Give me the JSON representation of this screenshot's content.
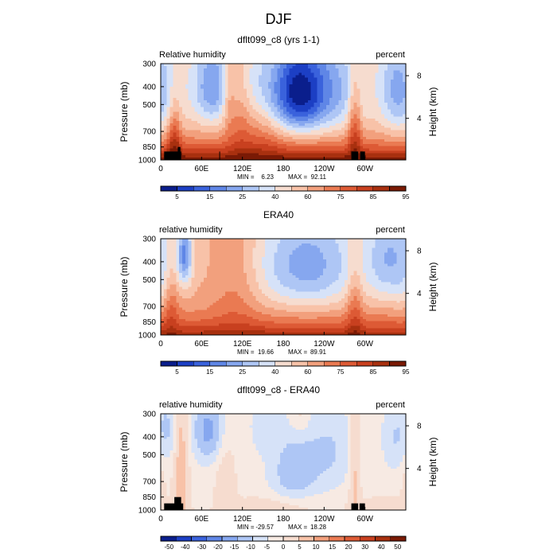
{
  "page_title": "DJF",
  "colors": {
    "rh_palette": [
      "#0a1e8c",
      "#1c3fc4",
      "#3a62dc",
      "#5f86e6",
      "#86a7ef",
      "#aec6f5",
      "#d6e2f8",
      "#f6dccf",
      "#f8c2a8",
      "#f2a07d",
      "#ea7a52",
      "#dd5a35",
      "#c8401f",
      "#a8300f",
      "#7a1a05"
    ],
    "diff_palette": [
      "#0a1e8c",
      "#1c3fc4",
      "#3a62dc",
      "#5f86e6",
      "#86a7ef",
      "#aec6f5",
      "#d6e2f8",
      "#f7eae3",
      "#f6dccf",
      "#f8c2a8",
      "#f2a07d",
      "#ea7a52",
      "#dd5a35",
      "#c8401f",
      "#a8300f",
      "#7a1a05"
    ],
    "topography": "#000000"
  },
  "chart_data": [
    {
      "type": "heatmap",
      "title": "dflt099_c8 (yrs 1-1)",
      "left_label": "Relative humidity",
      "right_label": "percent",
      "ylabel": "Pressure (mb)",
      "y2label": "Height (km)",
      "yticks": [
        300,
        400,
        500,
        700,
        850,
        1000
      ],
      "y2ticks": [
        8,
        4
      ],
      "xticks": [
        "0",
        "60E",
        "120E",
        "180",
        "120W",
        "60W"
      ],
      "stats": {
        "min_label": "MIN =",
        "min": "6.23",
        "max_label": "MAX =",
        "max": "92.11"
      },
      "colorbar_levels": [
        "5",
        "15",
        "25",
        "40",
        "60",
        "75",
        "85",
        "95"
      ],
      "zlim": [
        0,
        100
      ],
      "field": {
        "base": 55,
        "low_weight": 45,
        "features": [
          {
            "lon": 200,
            "p": 430,
            "amp": -48,
            "sx": 28,
            "sp": 180
          },
          {
            "lon": 255,
            "p": 420,
            "amp": -20,
            "sx": 35,
            "sp": 200
          },
          {
            "lon": 75,
            "p": 400,
            "amp": -28,
            "sx": 20,
            "sp": 160
          },
          {
            "lon": 345,
            "p": 420,
            "amp": -22,
            "sx": 16,
            "sp": 200
          },
          {
            "lon": 15,
            "p": 450,
            "amp": -12,
            "sx": 15,
            "sp": 200
          },
          {
            "lon": 140,
            "p": 380,
            "amp": -10,
            "sx": 20,
            "sp": 150
          },
          {
            "lon": 20,
            "p": 750,
            "amp": 22,
            "sx": 7,
            "sp": 250
          },
          {
            "lon": 285,
            "p": 650,
            "amp": 22,
            "sx": 7,
            "sp": 250
          },
          {
            "lon": 100,
            "p": 400,
            "amp": 12,
            "sx": 6,
            "sp": 180
          },
          {
            "lon": 115,
            "p": 550,
            "amp": 10,
            "sx": 12,
            "sp": 250
          },
          {
            "lon": 145,
            "p": 750,
            "amp": 8,
            "sx": 25,
            "sp": 200
          }
        ]
      },
      "topography": [
        {
          "lon0": 5,
          "lon1": 30,
          "ptop": 900
        },
        {
          "lon0": 25,
          "lon1": 29,
          "ptop": 850
        },
        {
          "lon0": 86,
          "lon1": 87,
          "ptop": 900
        },
        {
          "lon0": 280,
          "lon1": 290,
          "ptop": 900
        },
        {
          "lon0": 293,
          "lon1": 300,
          "ptop": 900
        }
      ]
    },
    {
      "type": "heatmap",
      "title": "ERA40",
      "left_label": "relative humidity",
      "right_label": "percent",
      "ylabel": "Pressure (mb)",
      "y2label": "Height (km)",
      "yticks": [
        300,
        400,
        500,
        700,
        850,
        1000
      ],
      "y2ticks": [
        8,
        4
      ],
      "xticks": [
        "0",
        "60E",
        "120E",
        "180",
        "120W",
        "60W"
      ],
      "stats": {
        "min_label": "MIN =",
        "min": "19.66",
        "max_label": "MAX =",
        "max": "89.91"
      },
      "colorbar_levels": [
        "5",
        "15",
        "25",
        "40",
        "60",
        "75",
        "85",
        "95"
      ],
      "zlim": [
        0,
        100
      ],
      "field": {
        "base": 58,
        "low_weight": 34,
        "features": [
          {
            "lon": 215,
            "p": 420,
            "amp": -28,
            "sx": 55,
            "sp": 200
          },
          {
            "lon": 35,
            "p": 370,
            "amp": -33,
            "sx": 8,
            "sp": 110
          },
          {
            "lon": 335,
            "p": 380,
            "amp": -22,
            "sx": 22,
            "sp": 180
          },
          {
            "lon": 0,
            "p": 450,
            "amp": -8,
            "sx": 12,
            "sp": 220
          },
          {
            "lon": 110,
            "p": 500,
            "amp": 10,
            "sx": 25,
            "sp": 300
          },
          {
            "lon": 285,
            "p": 680,
            "amp": 14,
            "sx": 8,
            "sp": 250
          },
          {
            "lon": 15,
            "p": 720,
            "amp": 12,
            "sx": 8,
            "sp": 200
          }
        ]
      },
      "topography": []
    },
    {
      "type": "heatmap",
      "title": "dflt099_c8 - ERA40",
      "left_label": "relative humidity",
      "right_label": "percent",
      "ylabel": "Pressure (mb)",
      "y2label": "Height (km)",
      "yticks": [
        300,
        400,
        500,
        700,
        850,
        1000
      ],
      "y2ticks": [
        8,
        4
      ],
      "xticks": [
        "0",
        "60E",
        "120E",
        "180",
        "120W",
        "60W"
      ],
      "stats": {
        "min_label": "MIN =",
        "min": "-29.57",
        "max_label": "MAX =",
        "max": "18.28"
      },
      "colorbar_levels": [
        "-50",
        "-40",
        "-30",
        "-20",
        "-15",
        "-10",
        "-5",
        "0",
        "5",
        "10",
        "15",
        "20",
        "30",
        "40",
        "50"
      ],
      "zlim": [
        -60,
        60
      ],
      "field": {
        "base": -3,
        "low_weight": 2,
        "features": [
          {
            "lon": 70,
            "p": 370,
            "amp": -22,
            "sx": 18,
            "sp": 120
          },
          {
            "lon": 195,
            "p": 620,
            "amp": -18,
            "sx": 25,
            "sp": 200
          },
          {
            "lon": 250,
            "p": 480,
            "amp": -12,
            "sx": 25,
            "sp": 200
          },
          {
            "lon": 345,
            "p": 400,
            "amp": -12,
            "sx": 14,
            "sp": 150
          },
          {
            "lon": 10,
            "p": 360,
            "amp": -12,
            "sx": 10,
            "sp": 120
          },
          {
            "lon": 150,
            "p": 350,
            "amp": -8,
            "sx": 15,
            "sp": 100
          },
          {
            "lon": 30,
            "p": 550,
            "amp": 16,
            "sx": 8,
            "sp": 400
          },
          {
            "lon": 95,
            "p": 700,
            "amp": 10,
            "sx": 10,
            "sp": 300
          },
          {
            "lon": 285,
            "p": 580,
            "amp": 14,
            "sx": 6,
            "sp": 350
          },
          {
            "lon": 0,
            "p": 650,
            "amp": 6,
            "sx": 6,
            "sp": 200
          },
          {
            "lon": 170,
            "p": 950,
            "amp": 8,
            "sx": 40,
            "sp": 80
          },
          {
            "lon": 330,
            "p": 960,
            "amp": 8,
            "sx": 30,
            "sp": 70
          },
          {
            "lon": 205,
            "p": 300,
            "amp": 10,
            "sx": 10,
            "sp": 60
          }
        ]
      },
      "topography": [
        {
          "lon0": 5,
          "lon1": 33,
          "ptop": 920
        },
        {
          "lon0": 20,
          "lon1": 30,
          "ptop": 850
        },
        {
          "lon0": 280,
          "lon1": 290,
          "ptop": 920
        },
        {
          "lon0": 292,
          "lon1": 300,
          "ptop": 920
        }
      ]
    }
  ]
}
